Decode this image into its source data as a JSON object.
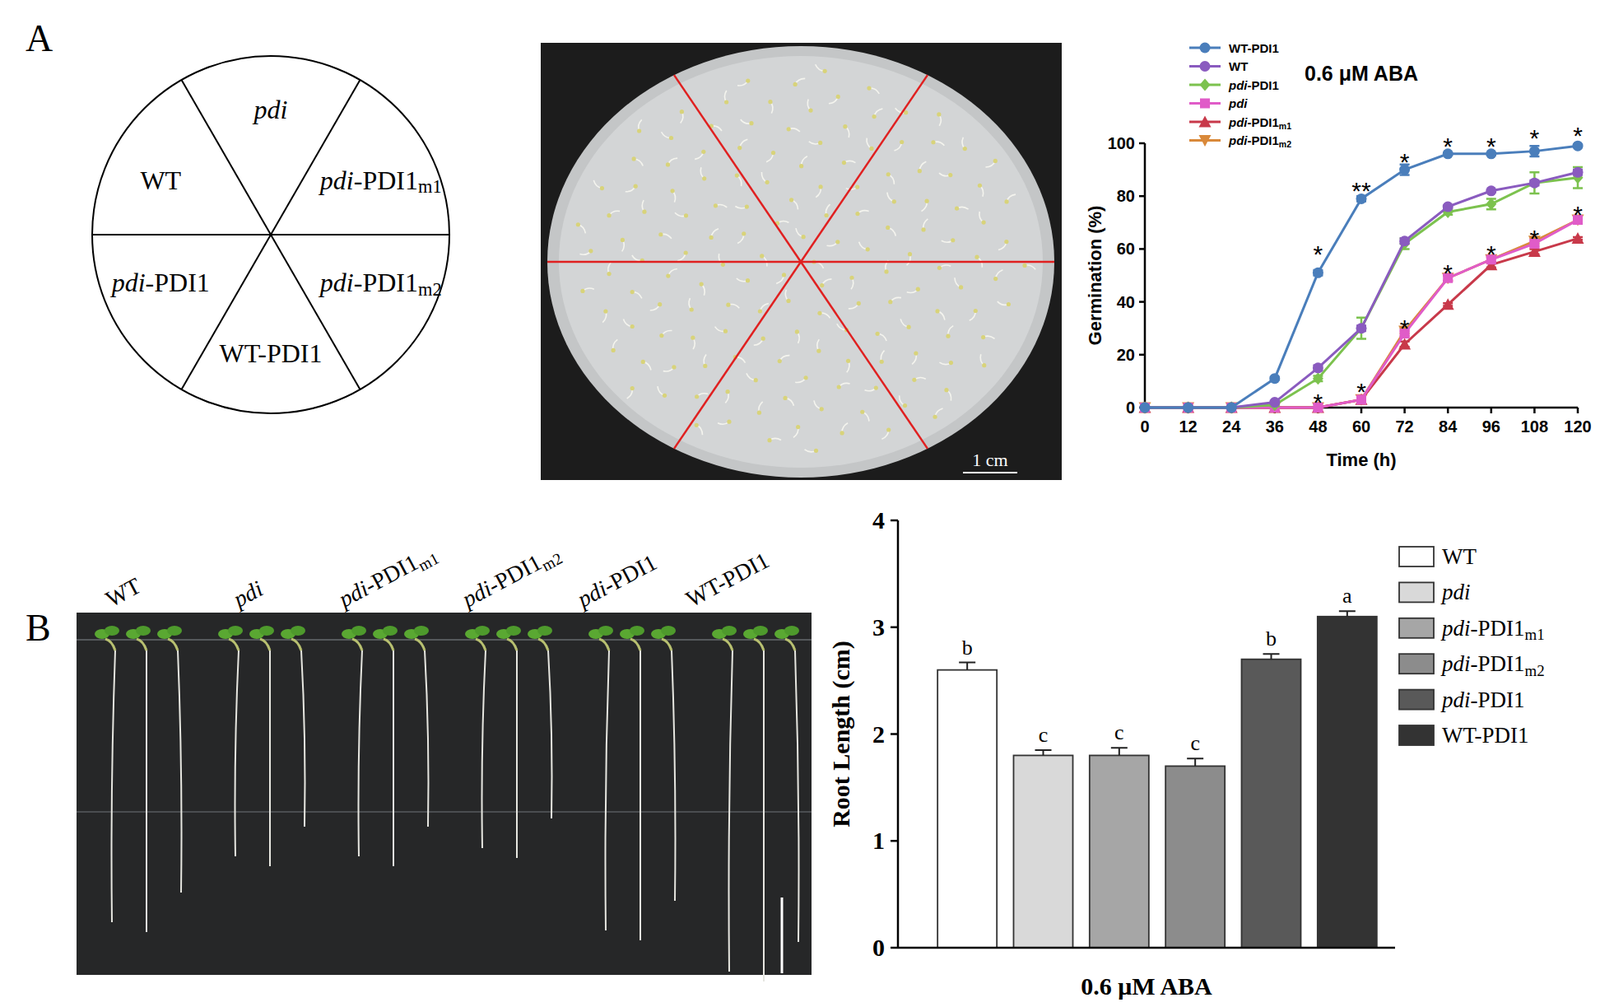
{
  "figure": {
    "panel_labels": [
      "A",
      "B"
    ],
    "dish_layout": [
      "pdi",
      "pdi-PDI1m1",
      "pdi-PDI1m2",
      "WT-PDI1",
      "pdi-PDI1",
      "WT"
    ],
    "dish_scale_bar": "1 cm",
    "seedling_labels": [
      "WT",
      "pdi",
      "pdi-PDI1m1",
      "pdi-PDI1m2",
      "pdi-PDI1",
      "WT-PDI1"
    ]
  },
  "chart_data": [
    {
      "type": "line",
      "title": "0.6 μM ABA",
      "x_label": "Time (h)",
      "y_label": "Germination (%)",
      "x": [
        0,
        12,
        24,
        36,
        48,
        60,
        72,
        84,
        96,
        108,
        120
      ],
      "xlim": [
        0,
        120
      ],
      "ylim": [
        0,
        100
      ],
      "xticks": [
        0,
        12,
        24,
        36,
        48,
        60,
        72,
        84,
        96,
        108,
        120
      ],
      "yticks": [
        0,
        20,
        40,
        60,
        80,
        100
      ],
      "legend": "top-left",
      "series": [
        {
          "name": "WT-PDI1",
          "color": "#4a7ebb",
          "marker": "circle",
          "values": [
            0,
            0,
            0,
            11,
            51,
            79,
            90,
            96,
            96,
            97,
            99
          ],
          "errors": [
            0,
            0,
            0,
            0.5,
            1,
            1,
            2,
            0.5,
            0.5,
            2,
            0.5
          ]
        },
        {
          "name": "WT",
          "color": "#8a5bbf",
          "marker": "circle",
          "values": [
            0,
            0,
            0,
            2,
            15,
            30,
            63,
            76,
            82,
            85,
            89
          ],
          "errors": [
            0,
            0,
            0,
            0.5,
            1,
            1,
            1,
            0.5,
            0.5,
            1,
            1
          ]
        },
        {
          "name": "pdi-PDI1",
          "color": "#7cc24e",
          "marker": "diamond",
          "values": [
            0,
            0,
            0,
            1,
            11,
            30,
            62,
            74,
            77,
            85,
            87
          ],
          "errors": [
            0,
            0,
            0,
            0.5,
            1,
            4,
            2,
            1,
            2,
            4,
            4
          ]
        },
        {
          "name": "pdi",
          "color": "#e05cc8",
          "marker": "square",
          "values": [
            0,
            0,
            0,
            0,
            0,
            3,
            28,
            49,
            56,
            62,
            71
          ],
          "errors": [
            0,
            0,
            0,
            0,
            0,
            0.5,
            1,
            1,
            1,
            1,
            1
          ]
        },
        {
          "name": "pdi-PDI1m1",
          "color": "#c8394a",
          "marker": "triangle",
          "values": [
            0,
            0,
            0,
            0,
            0,
            3,
            24,
            39,
            54,
            59,
            64
          ],
          "errors": [
            0,
            0,
            0,
            0,
            0,
            0.5,
            1,
            0.5,
            1,
            1,
            0.5
          ]
        },
        {
          "name": "pdi-PDI1m2",
          "color": "#d9893a",
          "marker": "triangle-down",
          "values": [
            0,
            0,
            0,
            0,
            0,
            3,
            29,
            49,
            56,
            63,
            71
          ],
          "errors": [
            0,
            0,
            0,
            0,
            0,
            0.5,
            1,
            1,
            1,
            1,
            1
          ]
        }
      ],
      "annotations": [
        {
          "x": 48,
          "y": 60,
          "text": "*"
        },
        {
          "x": 48,
          "y": 4,
          "text": "*"
        },
        {
          "x": 60,
          "y": 84,
          "text": "**"
        },
        {
          "x": 60,
          "y": 8,
          "text": "*"
        },
        {
          "x": 72,
          "y": 95,
          "text": "*"
        },
        {
          "x": 72,
          "y": 32,
          "text": "*"
        },
        {
          "x": 84,
          "y": 101,
          "text": "*"
        },
        {
          "x": 84,
          "y": 53,
          "text": "*"
        },
        {
          "x": 96,
          "y": 101,
          "text": "*"
        },
        {
          "x": 96,
          "y": 60,
          "text": "*"
        },
        {
          "x": 108,
          "y": 104,
          "text": "*"
        },
        {
          "x": 108,
          "y": 66,
          "text": "*"
        },
        {
          "x": 120,
          "y": 105,
          "text": "*"
        },
        {
          "x": 120,
          "y": 75,
          "text": "*"
        }
      ]
    },
    {
      "type": "bar",
      "x_label": "0.6 μM ABA",
      "y_label": "Root Length (cm)",
      "categories": [
        "WT",
        "pdi",
        "pdi-PDI1m1",
        "pdi-PDI1m2",
        "pdi-PDI1",
        "WT-PDI1"
      ],
      "values": [
        2.6,
        1.8,
        1.8,
        1.7,
        2.7,
        3.1
      ],
      "errors": [
        0.07,
        0.05,
        0.07,
        0.07,
        0.05,
        0.05
      ],
      "significance_letters": [
        "b",
        "c",
        "c",
        "c",
        "b",
        "a"
      ],
      "colors": [
        "#ffffff",
        "#d9d9d9",
        "#a6a6a6",
        "#8c8c8c",
        "#595959",
        "#333333"
      ],
      "ylim": [
        0,
        4
      ],
      "yticks": [
        0,
        1,
        2,
        3,
        4
      ],
      "tick_labels": "y",
      "legend": "right"
    }
  ]
}
